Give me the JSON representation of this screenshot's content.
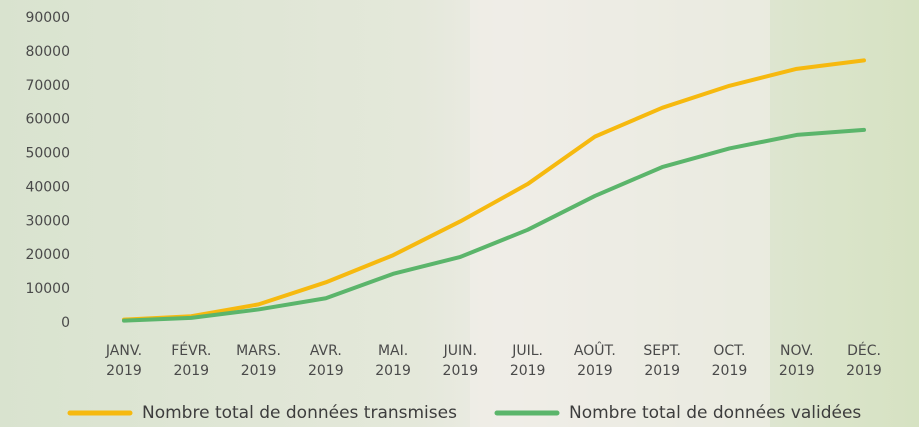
{
  "chart_data": {
    "type": "line",
    "categories": [
      [
        "JANV.",
        "2019"
      ],
      [
        "FÉVR.",
        "2019"
      ],
      [
        "MARS.",
        "2019"
      ],
      [
        "AVR.",
        "2019"
      ],
      [
        "MAI.",
        "2019"
      ],
      [
        "JUIN.",
        "2019"
      ],
      [
        "JUIL.",
        "2019"
      ],
      [
        "AOÛT.",
        "2019"
      ],
      [
        "SEPT.",
        "2019"
      ],
      [
        "OCT.",
        "2019"
      ],
      [
        "NOV.",
        "2019"
      ],
      [
        "DÉC.",
        "2019"
      ]
    ],
    "series": [
      {
        "name": "Nombre total de données transmises",
        "color": "#f6b90f",
        "values": [
          1000,
          2000,
          5500,
          12000,
          20000,
          30000,
          41000,
          55000,
          63500,
          70000,
          75000,
          77500
        ]
      },
      {
        "name": "Nombre total de données validées",
        "color": "#5bb56b",
        "values": [
          700,
          1500,
          4000,
          7300,
          14500,
          19500,
          27500,
          37500,
          46000,
          51500,
          55500,
          57000
        ]
      }
    ],
    "ylim": [
      0,
      90000
    ],
    "yticks": [
      0,
      10000,
      20000,
      30000,
      40000,
      50000,
      60000,
      70000,
      80000,
      90000
    ],
    "grid": false
  }
}
